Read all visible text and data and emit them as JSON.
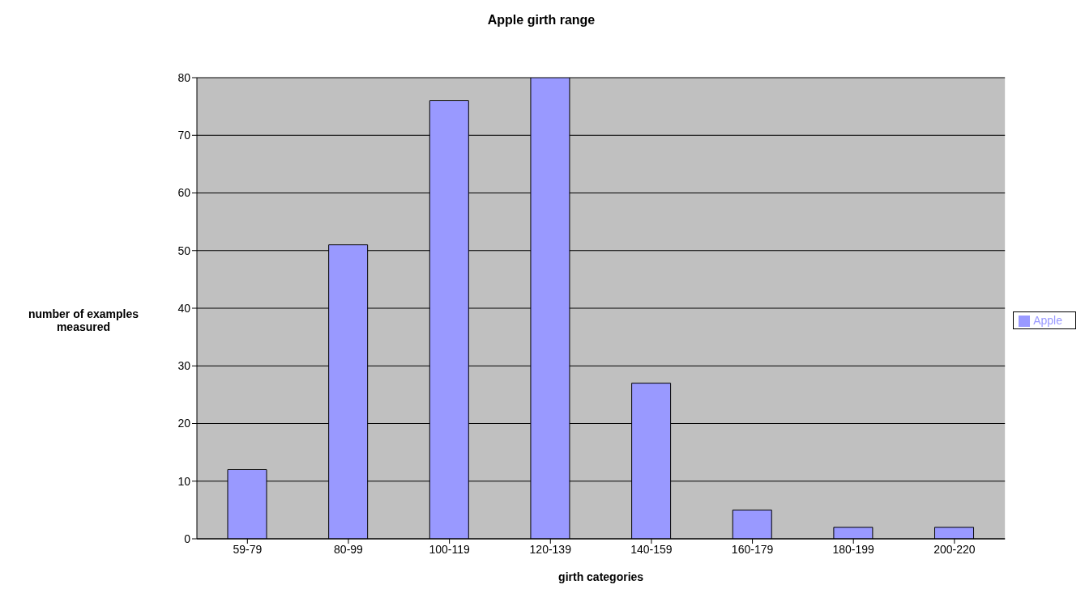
{
  "chart_data": {
    "type": "bar",
    "title": "Apple girth range",
    "xlabel": "girth categories",
    "ylabel": "number of examples measured",
    "categories": [
      "59-79",
      "80-99",
      "100-119",
      "120-139",
      "140-159",
      "160-179",
      "180-199",
      "200-220"
    ],
    "series": [
      {
        "name": "Apple",
        "color": "#9999ff",
        "values": [
          12,
          51,
          76,
          80,
          27,
          5,
          2,
          2
        ]
      }
    ],
    "ylim": [
      0,
      80
    ],
    "yticks": [
      0,
      10,
      20,
      30,
      40,
      50,
      60,
      70,
      80
    ],
    "grid": "y",
    "legend": "right"
  }
}
